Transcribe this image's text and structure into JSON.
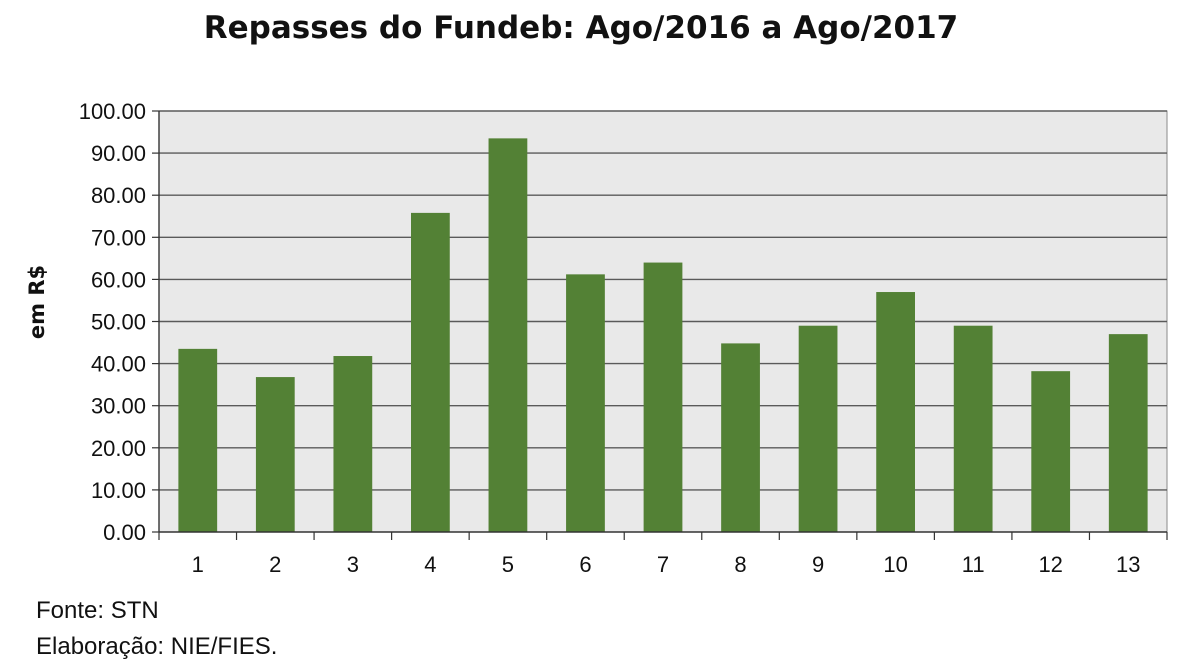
{
  "chart_data": {
    "type": "bar",
    "title": "Repasses do Fundeb: Ago/2016 a Ago/2017",
    "xlabel": "",
    "ylabel": "em R$",
    "categories": [
      "1",
      "2",
      "3",
      "4",
      "5",
      "6",
      "7",
      "8",
      "9",
      "10",
      "11",
      "12",
      "13"
    ],
    "values": [
      43.5,
      36.8,
      41.8,
      75.8,
      93.5,
      61.2,
      64.0,
      44.8,
      49.0,
      57.0,
      49.0,
      38.2,
      47.0
    ],
    "ylim": [
      0,
      100
    ],
    "ytick_step": 10,
    "ytick_format_decimals": 2,
    "grid": true,
    "legend": "none",
    "colors": {
      "bar": "#538135",
      "plot_background": "#e9e9e9",
      "gridline": "#5a5a5a"
    }
  },
  "footer": {
    "source": "Fonte: STN",
    "credit": "Elaboração: NIE/FIES."
  }
}
